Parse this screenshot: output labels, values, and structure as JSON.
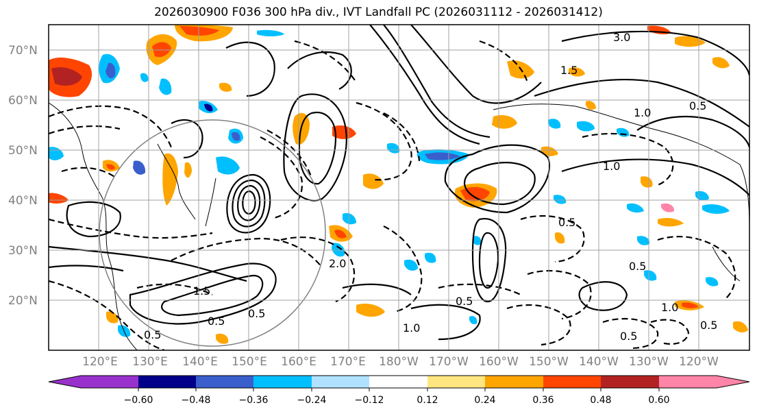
{
  "title": "2026030900 F036 300 hPa div., IVT Landfall PC (2026031112 - 2026031412)",
  "map": {
    "latitude_labels": [
      "70°N",
      "60°N",
      "50°N",
      "40°N",
      "30°N",
      "20°N"
    ],
    "longitude_labels": [
      "120°E",
      "130°E",
      "140°E",
      "150°E",
      "160°E",
      "170°E",
      "180°W",
      "170°W",
      "160°W",
      "150°W",
      "140°W",
      "130°W",
      "120°W"
    ],
    "contour_labels": [
      "3.0",
      "1.5",
      "1.0",
      "0.5",
      "1.0",
      "2.0",
      "1.5",
      "0.5",
      "0.5",
      "1.0",
      "0.5",
      "0.5",
      "0.5",
      "0.5",
      "0.5",
      "1.0",
      "0.5"
    ]
  },
  "colorbar": {
    "tick_labels": [
      "−0.60",
      "−0.48",
      "−0.36",
      "−0.24",
      "−0.12",
      "0.12",
      "0.24",
      "0.36",
      "0.48",
      "0.60"
    ],
    "colors": [
      "#9932cc",
      "#00008b",
      "#3a5fcd",
      "#00bfff",
      "#b0e2ff",
      "#ffffff",
      "#ffe680",
      "#ffa500",
      "#ff4500",
      "#b22222",
      "#ff85a8"
    ]
  },
  "colors": {
    "frame": "#000000",
    "grid": "#a0a0a0",
    "label_gray": "#808080"
  }
}
